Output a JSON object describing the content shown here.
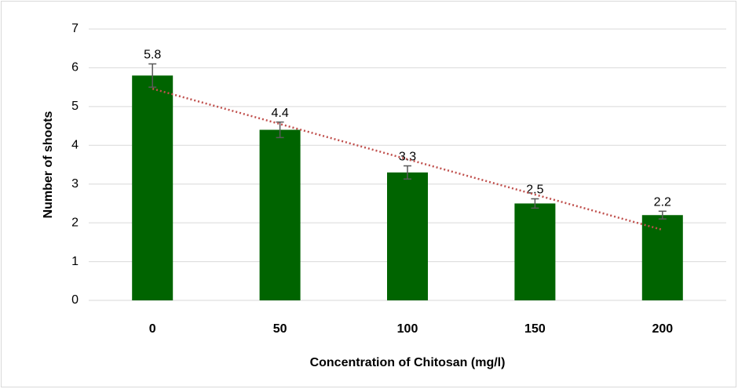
{
  "chart_data": {
    "type": "bar",
    "x_label": "Concentration of Chitosan (mg/l)",
    "y_label": "Number of shoots",
    "categories": [
      "0",
      "50",
      "100",
      "150",
      "200"
    ],
    "values": [
      5.8,
      4.4,
      3.3,
      2.5,
      2.2
    ],
    "errors": [
      0.3,
      0.2,
      0.17,
      0.12,
      0.1
    ],
    "color": "#006400",
    "error_color": "#595959",
    "trendline": "linear",
    "trendline_color": "#c0504d",
    "ylim": [
      0,
      7
    ],
    "yticks": [
      0,
      1,
      2,
      3,
      4,
      5,
      6,
      7
    ],
    "grid": true
  }
}
